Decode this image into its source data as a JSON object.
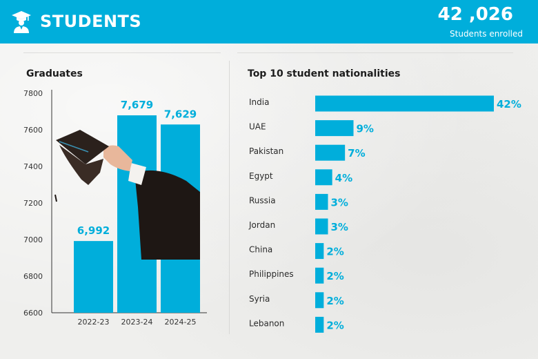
{
  "header": {
    "title": "STUDENTS",
    "stat_value": "42 ,026",
    "stat_label": "Students enrolled"
  },
  "colors": {
    "accent": "#00aedb",
    "text_dark": "#1d1d1d",
    "background": "#efefed"
  },
  "icons": {
    "header": "graduate-icon"
  },
  "chart_data": [
    {
      "type": "bar",
      "title": "Graduates",
      "categories": [
        "2022-23",
        "2023-24",
        "2024-25"
      ],
      "values": [
        6992,
        7679,
        7629
      ],
      "value_labels": [
        "6,992",
        "7,679",
        "7,629"
      ],
      "ylim": [
        6600,
        7800
      ],
      "yticks": [
        6600,
        6800,
        7000,
        7200,
        7400,
        7600,
        7800
      ],
      "grid": false
    },
    {
      "type": "bar",
      "orientation": "horizontal",
      "title": "Top 10 student nationalities",
      "categories": [
        "India",
        "UAE",
        "Pakistan",
        "Egypt",
        "Russia",
        "Jordan",
        "China",
        "Philippines",
        "Syria",
        "Lebanon"
      ],
      "values": [
        42,
        9,
        7,
        4,
        3,
        3,
        2,
        2,
        2,
        2
      ],
      "unit": "%"
    }
  ]
}
